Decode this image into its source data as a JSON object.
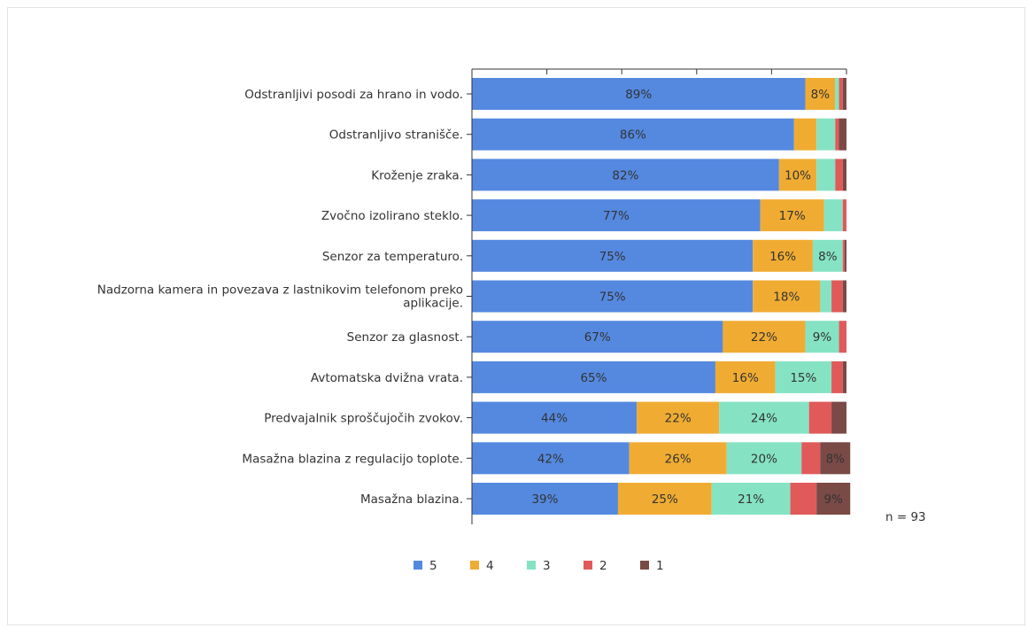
{
  "chart_data": {
    "type": "bar",
    "orientation": "horizontal",
    "stacked": true,
    "percent_stacked": true,
    "categories": [
      "Odstranljivi posodi za hrano in vodo.",
      "Odstranljivo stranišče.",
      "Kroženje zraka.",
      "Zvočno izolirano steklo.",
      "Senzor za temperaturo.",
      "Nadzorna kamera in povezava z lastnikovim telefonom preko aplikacije.",
      "Senzor za glasnost.",
      "Avtomatska dvižna vrata.",
      "Predvajalnik sproščujočih zvokov.",
      "Masažna blazina z regulacijo toplote.",
      "Masažna blazina."
    ],
    "series": [
      {
        "name": "5",
        "color": "#5589e0",
        "values": [
          89,
          86,
          82,
          77,
          75,
          75,
          67,
          65,
          44,
          42,
          39
        ]
      },
      {
        "name": "4",
        "color": "#f0ac32",
        "values": [
          8,
          6,
          10,
          17,
          16,
          18,
          22,
          16,
          22,
          26,
          25
        ]
      },
      {
        "name": "3",
        "color": "#85e3c4",
        "values": [
          1,
          5,
          5,
          5,
          8,
          3,
          9,
          15,
          24,
          20,
          21
        ]
      },
      {
        "name": "2",
        "color": "#e05a5a",
        "values": [
          1,
          1,
          2,
          1,
          0.5,
          3,
          2,
          3,
          6,
          5,
          7
        ]
      },
      {
        "name": "1",
        "color": "#7a4a46",
        "values": [
          1,
          2,
          1,
          0,
          0.5,
          1,
          0,
          1,
          4,
          8,
          9
        ]
      }
    ],
    "labels": [
      [
        "89%",
        "8%",
        "",
        "",
        ""
      ],
      [
        "86%",
        "",
        "",
        "",
        ""
      ],
      [
        "82%",
        "10%",
        "",
        "",
        ""
      ],
      [
        "77%",
        "17%",
        "",
        "",
        ""
      ],
      [
        "75%",
        "16%",
        "8%",
        "",
        ""
      ],
      [
        "75%",
        "18%",
        "",
        "",
        ""
      ],
      [
        "67%",
        "22%",
        "9%",
        "",
        ""
      ],
      [
        "65%",
        "16%",
        "15%",
        "",
        ""
      ],
      [
        "44%",
        "22%",
        "24%",
        "",
        ""
      ],
      [
        "42%",
        "26%",
        "20%",
        "",
        "8%"
      ],
      [
        "39%",
        "25%",
        "21%",
        "",
        "9%"
      ]
    ],
    "xlim": [
      0,
      100
    ],
    "grid": false,
    "legend_position": "bottom",
    "note": "n = 93"
  }
}
